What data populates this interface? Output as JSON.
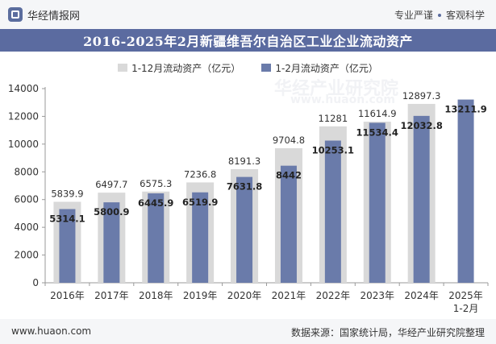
{
  "header": {
    "brand": "华经情报网",
    "tagline_left": "专业严谨",
    "tagline_right": "客观科学"
  },
  "footer": {
    "website": "www.huaon.com",
    "source": "数据来源：国家统计局，华经产业研究院整理"
  },
  "watermark": {
    "text": "华经产业研究院",
    "url": "www.huaon.com"
  },
  "colors": {
    "series_full_year": "#d9d9d9",
    "series_jan_feb": "#6a7baa",
    "title_bar": "#5b6ba0"
  },
  "chart_data": {
    "type": "bar",
    "title": "2016-2025年2月新疆维吾尔自治区工业企业流动资产",
    "categories": [
      "2016年",
      "2017年",
      "2018年",
      "2019年",
      "2020年",
      "2021年",
      "2022年",
      "2023年",
      "2024年",
      "2025年 1-2月"
    ],
    "series": [
      {
        "name": "1-12月流动资产（亿元）",
        "values": [
          5839.9,
          6497.7,
          6575.3,
          7236.8,
          8191.3,
          9704.8,
          11281,
          11614.9,
          12897.3,
          null
        ],
        "labels": [
          "5839.9",
          "6497.7",
          "6575.3",
          "7236.8",
          "8191.3",
          "9704.8",
          "11281",
          "11614.9",
          "12897.3",
          ""
        ]
      },
      {
        "name": "1-2月流动资产（亿元）",
        "values": [
          5314.1,
          5800.9,
          6445.9,
          6519.9,
          7631.8,
          8442,
          10253.1,
          11534.4,
          12032.8,
          13211.9
        ],
        "labels": [
          "5314.1",
          "5800.9",
          "6445.9",
          "6519.9",
          "7631.8",
          "8442",
          "10253.1",
          "11534.4",
          "12032.8",
          "13211.9"
        ]
      }
    ],
    "ylim": [
      0,
      14000
    ],
    "yticks": [
      "0",
      "2000",
      "4000",
      "6000",
      "8000",
      "10000",
      "12000",
      "14000"
    ],
    "grid": false,
    "legend_position": "top-center"
  }
}
